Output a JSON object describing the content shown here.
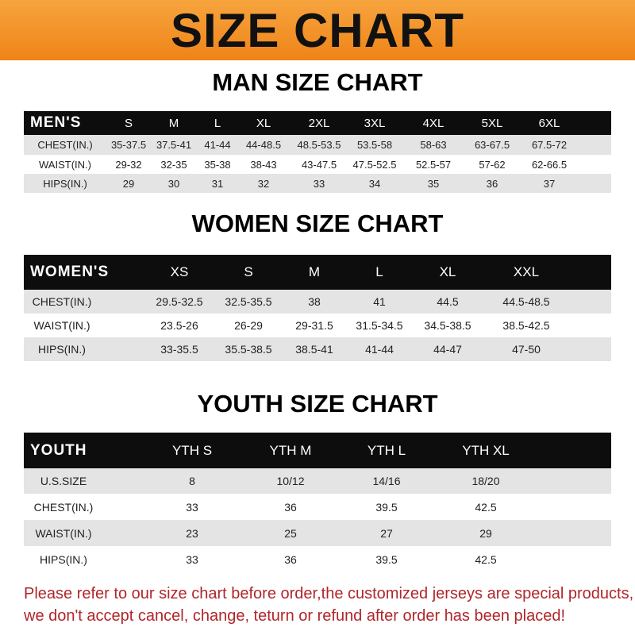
{
  "banner": {
    "title": "SIZE CHART",
    "color": "#f08a1e"
  },
  "men": {
    "title": "MAN SIZE CHART",
    "corner": "MEN'S",
    "sizes": [
      "S",
      "M",
      "L",
      "XL",
      "2XL",
      "3XL",
      "4XL",
      "5XL",
      "6XL"
    ],
    "rows": [
      {
        "label": "CHEST(IN.)",
        "values": [
          "35-37.5",
          "37.5-41",
          "41-44",
          "44-48.5",
          "48.5-53.5",
          "53.5-58",
          "58-63",
          "63-67.5",
          "67.5-72"
        ]
      },
      {
        "label": "WAIST(IN.)",
        "values": [
          "29-32",
          "32-35",
          "35-38",
          "38-43",
          "43-47.5",
          "47.5-52.5",
          "52.5-57",
          "57-62",
          "62-66.5"
        ]
      },
      {
        "label": "HIPS(IN.)",
        "values": [
          "29",
          "30",
          "31",
          "32",
          "33",
          "34",
          "35",
          "36",
          "37"
        ]
      }
    ]
  },
  "women": {
    "title": "WOMEN SIZE CHART",
    "corner": "WOMEN'S",
    "sizes": [
      "XS",
      "S",
      "M",
      "L",
      "XL",
      "XXL"
    ],
    "rows": [
      {
        "label": "CHEST(IN.)",
        "values": [
          "29.5-32.5",
          "32.5-35.5",
          "38",
          "41",
          "44.5",
          "44.5-48.5"
        ]
      },
      {
        "label": "WAIST(IN.)",
        "values": [
          "23.5-26",
          "26-29",
          "29-31.5",
          "31.5-34.5",
          "34.5-38.5",
          "38.5-42.5"
        ]
      },
      {
        "label": "HIPS(IN.)",
        "values": [
          "33-35.5",
          "35.5-38.5",
          "38.5-41",
          "41-44",
          "44-47",
          "47-50"
        ]
      }
    ]
  },
  "youth": {
    "title": "YOUTH SIZE CHART",
    "corner": "YOUTH",
    "sizes": [
      "YTH S",
      "YTH M",
      "YTH L",
      "YTH XL"
    ],
    "rows": [
      {
        "label": "U.S.SIZE",
        "values": [
          "8",
          "10/12",
          "14/16",
          "18/20"
        ]
      },
      {
        "label": "CHEST(IN.)",
        "values": [
          "33",
          "36",
          "39.5",
          "42.5"
        ]
      },
      {
        "label": "WAIST(IN.)",
        "values": [
          "23",
          "25",
          "27",
          "29"
        ]
      },
      {
        "label": "HIPS(IN.)",
        "values": [
          "33",
          "36",
          "39.5",
          "42.5"
        ]
      }
    ]
  },
  "notice": {
    "line1": "Please refer to our size chart before order,the customized jerseys are special products,",
    "line2": "we don't accept cancel, change, teturn or refund after order has been placed!",
    "color": "#b0262a"
  }
}
